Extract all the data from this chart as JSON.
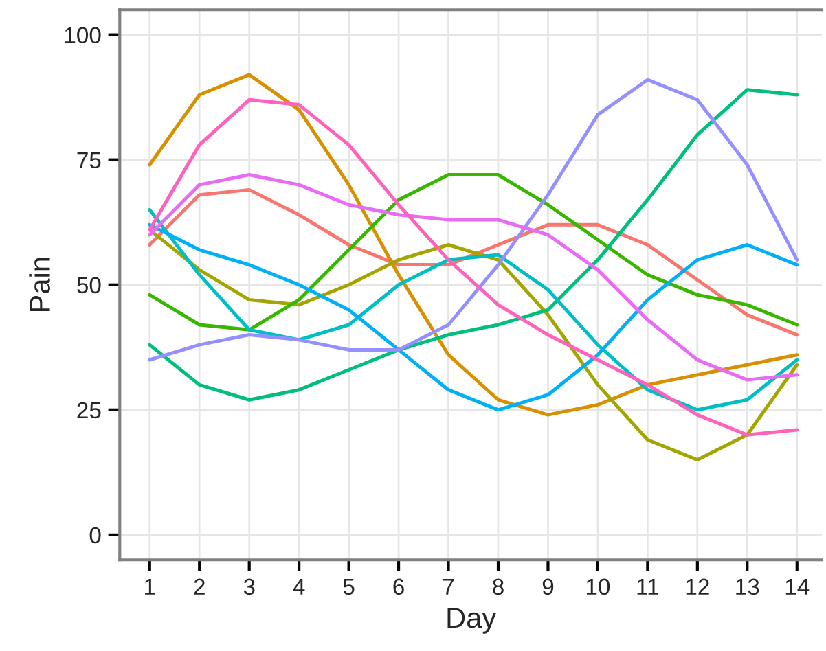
{
  "chart_data": {
    "type": "line",
    "xlabel": "Day",
    "ylabel": "Pain",
    "x": [
      1,
      2,
      3,
      4,
      5,
      6,
      7,
      8,
      9,
      10,
      11,
      12,
      13,
      14
    ],
    "series": [
      {
        "color": "#f8766d",
        "values": [
          58,
          68,
          69,
          64,
          58,
          54,
          54,
          58,
          62,
          62,
          58,
          51,
          44,
          40
        ]
      },
      {
        "color": "#d89000",
        "values": [
          74,
          88,
          92,
          85,
          70,
          52,
          36,
          27,
          24,
          26,
          30,
          32,
          34,
          36
        ]
      },
      {
        "color": "#a3a500",
        "values": [
          61,
          53,
          47,
          46,
          50,
          55,
          58,
          55,
          44,
          30,
          19,
          15,
          20,
          34
        ]
      },
      {
        "color": "#39b600",
        "values": [
          48,
          42,
          41,
          47,
          57,
          67,
          72,
          72,
          66,
          59,
          52,
          48,
          46,
          42
        ]
      },
      {
        "color": "#00bf7d",
        "values": [
          38,
          30,
          27,
          29,
          33,
          37,
          40,
          42,
          45,
          55,
          67,
          80,
          89,
          88
        ]
      },
      {
        "color": "#00bfc4",
        "values": [
          65,
          52,
          41,
          39,
          42,
          50,
          55,
          56,
          49,
          38,
          29,
          25,
          27,
          35
        ]
      },
      {
        "color": "#00b0f6",
        "values": [
          62,
          57,
          54,
          50,
          45,
          37,
          29,
          25,
          28,
          36,
          47,
          55,
          58,
          54
        ]
      },
      {
        "color": "#9590ff",
        "values": [
          35,
          38,
          40,
          39,
          37,
          37,
          42,
          54,
          68,
          84,
          91,
          87,
          74,
          55
        ]
      },
      {
        "color": "#e76bf3",
        "values": [
          60,
          70,
          72,
          70,
          66,
          64,
          63,
          63,
          60,
          53,
          43,
          35,
          31,
          32
        ]
      },
      {
        "color": "#ff62bc",
        "values": [
          61,
          78,
          87,
          86,
          78,
          66,
          55,
          46,
          40,
          35,
          30,
          24,
          20,
          21
        ]
      }
    ],
    "xlim": [
      0.4,
      14.5
    ],
    "xticks": [
      1,
      2,
      3,
      4,
      5,
      6,
      7,
      8,
      9,
      10,
      11,
      12,
      13,
      14
    ],
    "ylim": [
      -5,
      105
    ],
    "yticks": [
      0,
      25,
      50,
      75,
      100
    ],
    "grid": true,
    "legend": false,
    "marker": "none",
    "line_style": "solid"
  }
}
